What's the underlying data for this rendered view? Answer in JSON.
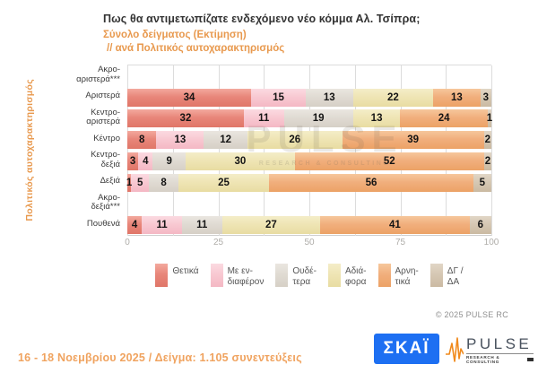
{
  "header": {
    "title": "Πως θα αντιμετωπίζατε ενδεχόμενο νέο κόμμα Αλ. Τσίπρα;",
    "subtitle_line1": "Σύνολο δείγματος   (Εκτίμηση)",
    "subtitle_line2": "// ανά Πολιτικός αυτοχαρακτηρισμός"
  },
  "chart_data": {
    "type": "bar",
    "orientation": "horizontal",
    "stacked": true,
    "ylabel": "Πολιτικός αυτοχαρακτηρισμός",
    "xlim": [
      0,
      100
    ],
    "x_ticks": [
      0,
      25,
      50,
      75,
      100
    ],
    "gridline_minor_step": 12.5,
    "grid": true,
    "legend_position": "bottom",
    "categories": [
      "Ακρο-αριστερά***",
      "Αριστερά",
      "Κεντρο-αριστερά",
      "Κέντρο",
      "Κεντρο-δεξιά",
      "Δεξιά",
      "Ακρο-δεξιά***",
      "Πουθενά"
    ],
    "category_display_lines": [
      [
        "Ακρο-",
        "αριστερά***"
      ],
      [
        "Αριστερά"
      ],
      [
        "Κεντρο-",
        "αριστερά"
      ],
      [
        "Κέντρο"
      ],
      [
        "Κεντρο-",
        "δεξιά"
      ],
      [
        "Δεξιά"
      ],
      [
        "Ακρο-",
        "δεξιά***"
      ],
      [
        "Πουθενά"
      ]
    ],
    "series": [
      {
        "name": "Θετικά",
        "legend_lines": [
          "Θετικά"
        ],
        "color": "#E8867A",
        "color_light": "#F3A99E",
        "color_dark": "#E07668",
        "values": [
          null,
          34,
          32,
          8,
          3,
          1,
          null,
          4
        ]
      },
      {
        "name": "Με ενδιαφέρον",
        "legend_lines": [
          "Με εν-",
          "διαφέρον"
        ],
        "color": "#F8C9D2",
        "color_light": "#FBDAE1",
        "color_dark": "#F4B8C4",
        "values": [
          null,
          15,
          11,
          13,
          4,
          5,
          null,
          11
        ]
      },
      {
        "name": "Ουδέτερα",
        "legend_lines": [
          "Ουδέ-",
          "τερα"
        ],
        "color": "#E0DBD3",
        "color_light": "#EAE6E0",
        "color_dark": "#D6D0C6",
        "values": [
          null,
          13,
          19,
          12,
          9,
          8,
          null,
          11
        ]
      },
      {
        "name": "Αδιάφορα",
        "legend_lines": [
          "Αδιά-",
          "φορα"
        ],
        "color": "#EFE5B5",
        "color_light": "#F4EDC8",
        "color_dark": "#E8DCA2",
        "values": [
          null,
          22,
          13,
          26,
          30,
          25,
          null,
          27
        ]
      },
      {
        "name": "Αρνητικά",
        "legend_lines": [
          "Αρνη-",
          "τικά"
        ],
        "color": "#F1AF7D",
        "color_light": "#F6C79C",
        "color_dark": "#ECA266",
        "values": [
          null,
          13,
          24,
          39,
          52,
          56,
          null,
          41
        ]
      },
      {
        "name": "ΔΓ/ΔΑ",
        "legend_lines": [
          "ΔΓ /",
          "ΔΑ"
        ],
        "color": "#D6C8B4",
        "color_light": "#E1D6C6",
        "color_dark": "#CBBAA2",
        "values": [
          null,
          3,
          1,
          2,
          2,
          5,
          null,
          6
        ]
      }
    ]
  },
  "watermark": {
    "text": "PULSE",
    "subtext": "RESEARCH & CONSULTING"
  },
  "copyright": "© 2025  PULSE RC",
  "footer": {
    "note": "16 - 18 Νοεμβρίου 2025  /  Δείγμα:  1.105 συνεντεύξεις",
    "skai_logo_text": "ΣΚΑΪ",
    "pulse_logo_text": "PULSE",
    "pulse_logo_subtext": "RESEARCH & CONSULTING"
  },
  "colors": {
    "accent_orange": "#E8994E",
    "footer_orange": "#F0A35F",
    "skai_blue": "#1D6FF2",
    "gridline": "#DCDCDC"
  }
}
